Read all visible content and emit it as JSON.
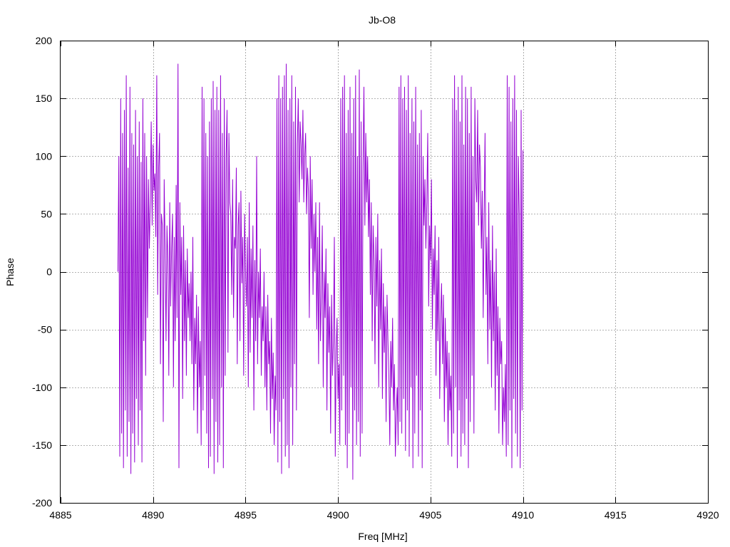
{
  "chart_data": {
    "type": "line",
    "title": "Jb-O8",
    "xlabel": "Freq [MHz]",
    "ylabel": "Phase",
    "xlim": [
      4885,
      4920
    ],
    "ylim": [
      -200,
      200
    ],
    "x_ticks": [
      4885,
      4890,
      4895,
      4900,
      4905,
      4910,
      4915,
      4920
    ],
    "y_ticks": [
      -200,
      -150,
      -100,
      -50,
      0,
      50,
      100,
      150,
      200
    ],
    "grid": true,
    "legend": "none",
    "line_color": "#9400d3",
    "series": [
      {
        "x_start": 4888.1,
        "x_step": 0.05,
        "values": [
          0,
          100,
          -160,
          150,
          -140,
          120,
          -170,
          140,
          -120,
          170,
          -160,
          90,
          -130,
          160,
          -175,
          120,
          -140,
          110,
          -165,
          140,
          -110,
          100,
          -150,
          130,
          -120,
          95,
          -165,
          150,
          -60,
          120,
          -90,
          100,
          -40,
          80,
          20,
          60,
          130,
          40,
          110,
          70,
          85,
          30,
          170,
          -20,
          90,
          120,
          -80,
          50,
          40,
          -130,
          80,
          20,
          -60,
          40,
          10,
          -90,
          60,
          -30,
          20,
          50,
          -100,
          30,
          -60,
          75,
          -40,
          180,
          -170,
          60,
          -20,
          30,
          -110,
          40,
          -60,
          10,
          -90,
          20,
          -40,
          -10,
          -60,
          0,
          -80,
          30,
          -120,
          -40,
          -80,
          -20,
          -140,
          -30,
          -100,
          -60,
          -150,
          160,
          -120,
          150,
          -90,
          120,
          -140,
          100,
          -170,
          130,
          -160,
          150,
          -110,
          165,
          -175,
          140,
          -130,
          160,
          -165,
          140,
          -150,
          170,
          -100,
          120,
          -170,
          150,
          -90,
          100,
          140,
          -70,
          120,
          60,
          50,
          -20,
          80,
          -40,
          30,
          20,
          90,
          -80,
          40,
          60,
          -60,
          70,
          -10,
          30,
          -90,
          50,
          0,
          -30,
          30,
          -100,
          60,
          -70,
          20,
          -40,
          40,
          -120,
          10,
          -60,
          100,
          -80,
          0,
          -40,
          20,
          -90,
          -30,
          -60,
          0,
          -100,
          -30,
          -120,
          -20,
          -80,
          -60,
          -140,
          -40,
          -110,
          -70,
          -150,
          -90,
          -120,
          150,
          -165,
          170,
          -130,
          150,
          -175,
          160,
          -110,
          170,
          -160,
          180,
          -150,
          140,
          -170,
          150,
          -100,
          170,
          -150,
          130,
          -80,
          160,
          -120,
          110,
          150,
          60,
          130,
          110,
          80,
          140,
          60,
          100,
          120,
          50,
          90,
          70,
          -40,
          100,
          20,
          80,
          -20,
          50,
          0,
          60,
          -50,
          30,
          -80,
          60,
          -60,
          -20,
          40,
          -100,
          0,
          -40,
          20,
          -120,
          -10,
          -70,
          -30,
          -140,
          -20,
          -90,
          -60,
          30,
          -160,
          -70,
          -40,
          -110,
          -80,
          -150,
          150,
          -120,
          160,
          -90,
          170,
          -150,
          120,
          -170,
          140,
          -140,
          160,
          -100,
          120,
          -180,
          150,
          -120,
          170,
          -150,
          100,
          -130,
          175,
          -160,
          130,
          -140,
          90,
          160,
          40,
          120,
          60,
          100,
          30,
          80,
          -20,
          60,
          -60,
          40,
          10,
          -80,
          30,
          -30,
          50,
          -100,
          10,
          -50,
          20,
          -110,
          -10,
          -70,
          -30,
          -130,
          -20,
          -60,
          -90,
          -150,
          -60,
          -100,
          -40,
          -120,
          -80,
          -160,
          -120,
          -100,
          -150,
          160,
          -130,
          170,
          -140,
          150,
          -110,
          160,
          -155,
          140,
          -120,
          170,
          -160,
          120,
          -100,
          150,
          -170,
          130,
          -140,
          160,
          -90,
          110,
          -160,
          120,
          -120,
          140,
          -170,
          100,
          40,
          80,
          20,
          60,
          120,
          -30,
          40,
          10,
          80,
          -50,
          20,
          -20,
          40,
          -90,
          10,
          -60,
          30,
          -110,
          -40,
          -10,
          -80,
          -20,
          -130,
          -40,
          -100,
          -60,
          -150,
          -70,
          -120,
          -90,
          -160,
          150,
          -140,
          170,
          -100,
          140,
          -170,
          160,
          -120,
          130,
          -160,
          170,
          -140,
          110,
          -150,
          160,
          -110,
          150,
          -170,
          120,
          -130,
          160,
          -90,
          100,
          -140,
          150,
          80,
          60,
          140,
          40,
          110,
          90,
          20,
          70,
          -40,
          50,
          120,
          -20,
          30,
          -80,
          60,
          -50,
          10,
          -100,
          40,
          -60,
          0,
          -120,
          20,
          -90,
          -30,
          -140,
          -40,
          -80,
          -60,
          -150,
          -100,
          -130,
          -80,
          -160,
          170,
          -150,
          160,
          -120,
          130,
          -170,
          150,
          -110,
          170,
          -140,
          140,
          -160,
          100,
          50,
          -170,
          140,
          -120,
          105
        ]
      }
    ]
  }
}
